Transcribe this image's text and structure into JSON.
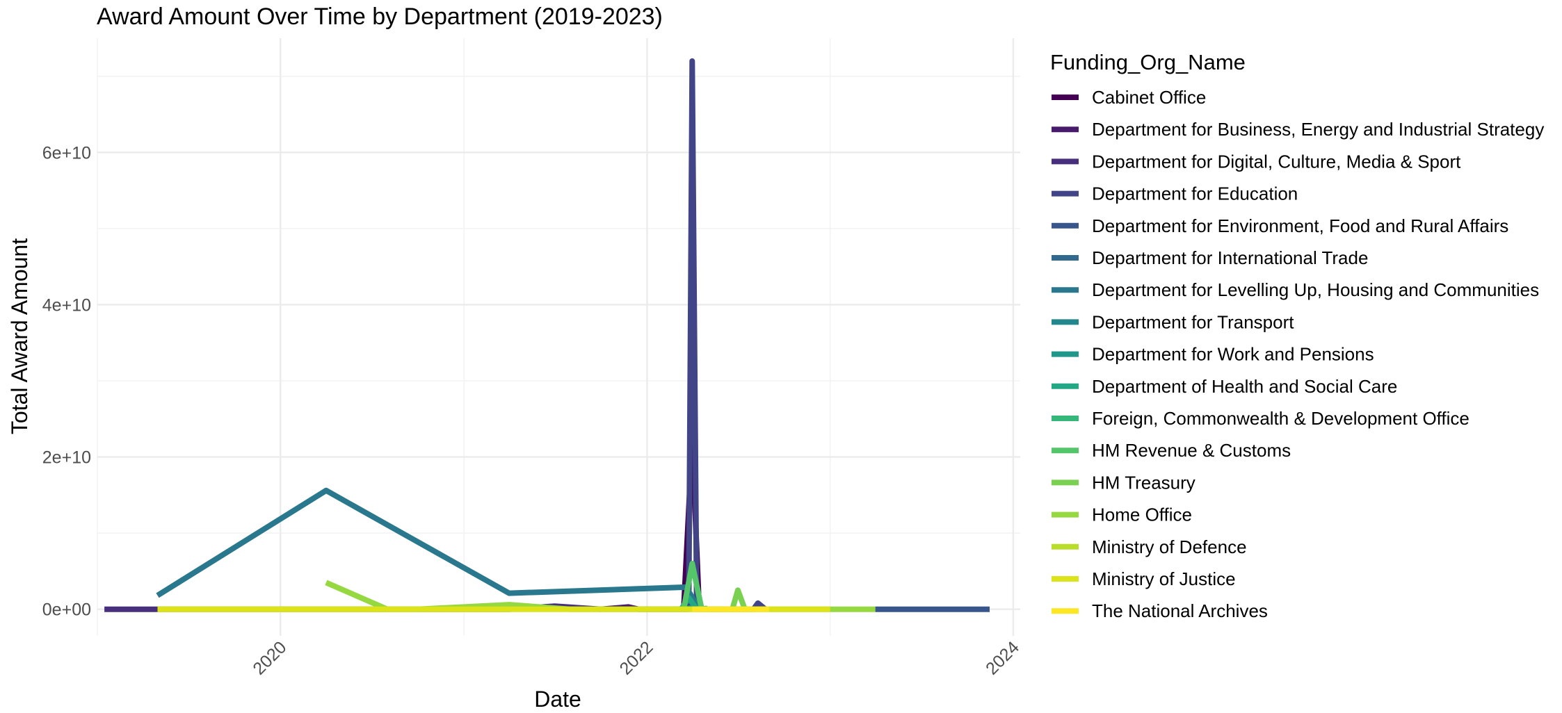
{
  "chart_data": {
    "type": "line",
    "title": "Award Amount Over Time by Department (2019-2023)",
    "xlabel": "Date",
    "ylabel": "Total Award Amount",
    "x_type": "date",
    "xlim": [
      "2019-01-01",
      "2024-01-15"
    ],
    "ylim": [
      -3500000000,
      75000000000
    ],
    "x_ticks": [
      "2020-01-01",
      "2022-01-01",
      "2024-01-01"
    ],
    "x_tick_labels": [
      "2020",
      "2022",
      "2024"
    ],
    "y_ticks": [
      0,
      20000000000,
      40000000000,
      60000000000
    ],
    "y_tick_labels": [
      "0e+00",
      "2e+10",
      "4e+10",
      "6e+10"
    ],
    "grid": true,
    "legend_title": "Funding_Org_Name",
    "legend_position": "right",
    "series": [
      {
        "name": "Cabinet Office",
        "color": "#440154",
        "points": [
          [
            "2022-03-15",
            0
          ],
          [
            "2022-04-01",
            22000000000
          ],
          [
            "2022-04-15",
            0
          ]
        ]
      },
      {
        "name": "Department for Business, Energy and Industrial Strategy",
        "color": "#481a6c",
        "points": [
          [
            "2021-10-01",
            0
          ],
          [
            "2021-11-25",
            300000000
          ],
          [
            "2021-12-15",
            0
          ],
          [
            "2022-03-01",
            0
          ]
        ]
      },
      {
        "name": "Department for Digital, Culture, Media & Sport",
        "color": "#472f7d",
        "points": [
          [
            "2019-01-15",
            0
          ],
          [
            "2019-05-01",
            0
          ],
          [
            "2021-04-01",
            0
          ],
          [
            "2021-07-01",
            400000000
          ],
          [
            "2021-10-01",
            0
          ]
        ]
      },
      {
        "name": "Department for Education",
        "color": "#414487",
        "points": [
          [
            "2022-03-01",
            0
          ],
          [
            "2022-03-25",
            0
          ],
          [
            "2022-04-01",
            72000000000
          ],
          [
            "2022-04-10",
            0
          ],
          [
            "2022-08-01",
            0
          ],
          [
            "2022-08-10",
            800000000
          ],
          [
            "2022-08-25",
            0
          ]
        ]
      },
      {
        "name": "Department for Environment, Food and Rural Affairs",
        "color": "#39568c",
        "points": [
          [
            "2023-04-01",
            0
          ],
          [
            "2023-11-15",
            0
          ]
        ]
      },
      {
        "name": "Department for International Trade",
        "color": "#31688e",
        "points": [
          [
            "2022-05-01",
            0
          ],
          [
            "2022-06-01",
            0
          ]
        ]
      },
      {
        "name": "Department for Levelling Up, Housing and Communities",
        "color": "#2a788e",
        "points": [
          [
            "2019-05-01",
            1800000000
          ],
          [
            "2020-04-01",
            15600000000
          ],
          [
            "2021-04-01",
            2100000000
          ],
          [
            "2022-03-20",
            2900000000
          ],
          [
            "2022-04-15",
            0
          ]
        ]
      },
      {
        "name": "Department for Transport",
        "color": "#23888e",
        "points": [
          [
            "2022-03-01",
            0
          ],
          [
            "2022-04-01",
            100000000
          ]
        ]
      },
      {
        "name": "Department for Work and Pensions",
        "color": "#1f988b",
        "points": [
          [
            "2022-03-15",
            0
          ],
          [
            "2022-04-01",
            200000000
          ],
          [
            "2022-04-15",
            0
          ]
        ]
      },
      {
        "name": "Department of Health and Social Care",
        "color": "#22a884",
        "points": [
          [
            "2022-03-10",
            0
          ],
          [
            "2022-03-25",
            1500000000
          ],
          [
            "2022-04-10",
            0
          ]
        ]
      },
      {
        "name": "Foreign, Commonwealth & Development Office",
        "color": "#35b779",
        "points": [
          [
            "2022-04-01",
            0
          ],
          [
            "2022-05-01",
            100000000
          ]
        ]
      },
      {
        "name": "HM Revenue & Customs",
        "color": "#54c568",
        "points": [
          [
            "2022-03-15",
            0
          ],
          [
            "2022-04-01",
            6000000000
          ],
          [
            "2022-04-20",
            0
          ]
        ]
      },
      {
        "name": "HM Treasury",
        "color": "#7ad151",
        "points": [
          [
            "2022-06-20",
            0
          ],
          [
            "2022-07-01",
            2500000000
          ],
          [
            "2022-07-15",
            0
          ]
        ]
      },
      {
        "name": "Home Office",
        "color": "#95d840",
        "points": [
          [
            "2020-04-01",
            3500000000
          ],
          [
            "2020-08-01",
            0
          ],
          [
            "2020-10-01",
            0
          ],
          [
            "2021-04-01",
            600000000
          ],
          [
            "2021-08-01",
            0
          ],
          [
            "2022-05-01",
            0
          ],
          [
            "2023-04-01",
            0
          ]
        ]
      },
      {
        "name": "Ministry of Defence",
        "color": "#b8de29",
        "points": [
          [
            "2019-05-01",
            0
          ],
          [
            "2021-04-01",
            0
          ]
        ]
      },
      {
        "name": "Ministry of Justice",
        "color": "#dce319",
        "points": [
          [
            "2019-05-01",
            0
          ],
          [
            "2023-01-01",
            0
          ]
        ]
      },
      {
        "name": "The National Archives",
        "color": "#fde725",
        "points": [
          [
            "2022-04-01",
            0
          ],
          [
            "2022-09-01",
            0
          ]
        ]
      }
    ]
  }
}
